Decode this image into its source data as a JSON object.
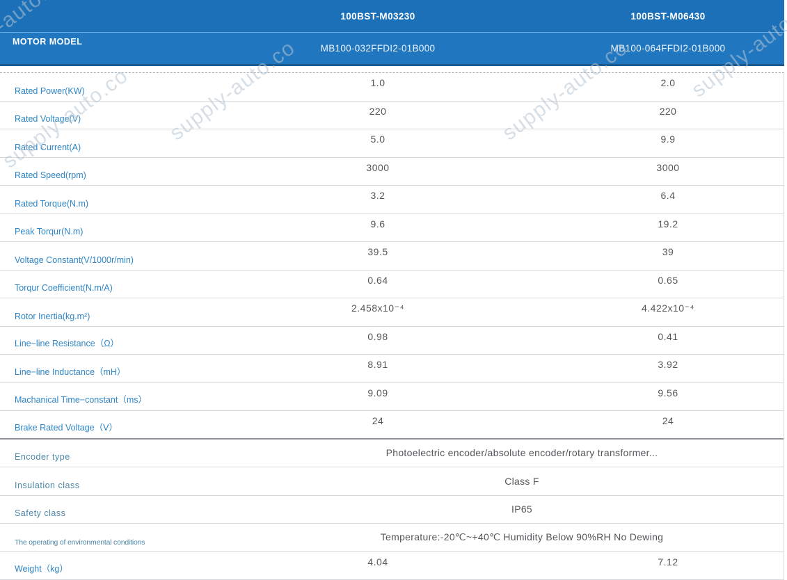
{
  "watermark": {
    "text": "supply-auto.co"
  },
  "colors": {
    "header_blue_dark": "#1c70b7",
    "header_blue_light": "#2177bf",
    "header_bottom_edge": "#175a92",
    "label_blue": "#2e86c6",
    "muted_label_blue": "#4d87a8",
    "value_gray": "#55565a",
    "row_divider": "#d6d8da"
  },
  "table": {
    "header": {
      "row_label": "MOTOR MODEL",
      "columns": [
        {
          "model": "100BST-M03230",
          "code": "MB100-032FFDI2-01B000"
        },
        {
          "model": "100BST-M06430",
          "code": "MB100-064FFDI2-01B000"
        }
      ]
    },
    "rows": [
      {
        "label": "Rated Power(KW)",
        "values": [
          "1.0",
          "2.0"
        ]
      },
      {
        "label": "Rated Voltage(V)",
        "values": [
          "220",
          "220"
        ]
      },
      {
        "label": "Rated Current(A)",
        "values": [
          "5.0",
          "9.9"
        ]
      },
      {
        "label": "Rated Speed(rpm)",
        "values": [
          "3000",
          "3000"
        ]
      },
      {
        "label": "Rated Torque(N.m)",
        "values": [
          "3.2",
          "6.4"
        ]
      },
      {
        "label": "Peak Torqur(N.m)",
        "values": [
          "9.6",
          "19.2"
        ]
      },
      {
        "label": "Voltage Constant(V/1000r/min)",
        "values": [
          "39.5",
          "39"
        ]
      },
      {
        "label": "Torqur Coefficient(N.m/A)",
        "values": [
          "0.64",
          "0.65"
        ]
      },
      {
        "label": "Rotor Inertia(kg.m²)",
        "values": [
          "2.458x10⁻⁴",
          "4.422x10⁻⁴"
        ]
      },
      {
        "label": "Line−line Resistance（Ω）",
        "values": [
          "0.98",
          "0.41"
        ]
      },
      {
        "label": "Line−line Inductance（mH）",
        "values": [
          "8.91",
          "3.92"
        ]
      },
      {
        "label": "Machanical Time−constant（ms）",
        "values": [
          "9.09",
          "9.56"
        ]
      },
      {
        "label": "Brake Rated Voltage（V）",
        "values": [
          "24",
          "24"
        ],
        "heavy_bottom": true
      },
      {
        "label": "Encoder type",
        "span": "Photoelectric encoder/absolute encoder/rotary transformer..."
      },
      {
        "label": "Insulation class",
        "span": "Class F"
      },
      {
        "label": "Safety class",
        "span": "IP65"
      },
      {
        "label": "The operating of environmental conditions",
        "span": "Temperature:-20℃~+40℃  Humidity Below 90%RH No Dewing",
        "condensed": true
      },
      {
        "label": "Weight（kg）",
        "values": [
          "4.04",
          "7.12"
        ]
      }
    ]
  }
}
